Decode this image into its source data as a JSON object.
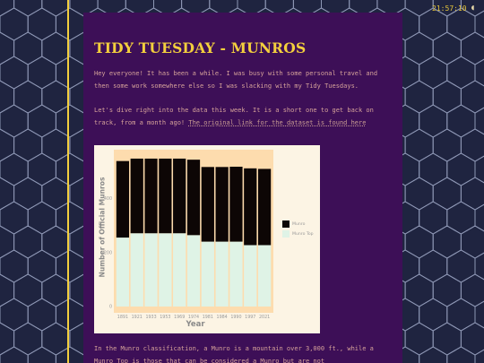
{
  "clock": {
    "time": "21:57:10"
  },
  "article": {
    "title": "TIDY TUESDAY - MUNROS",
    "intro": "Hey everyone! It has been a while. I was busy with some personal travel and then some work somewhere else so I was slacking with my Tidy Tuesdays.",
    "intro2_text": "Let's dive right into the data this week. It is a short one to get back on track, from a month ago!",
    "intro2_link": "The original link for the dataset is found here",
    "body": "In the Munro classification, a Munro is a mountain over 3,000 ft., while a Munro Top is those that can be considered a Munro but are not"
  },
  "colors": {
    "page_bg": "#1f2440",
    "hex_stroke": "#8e97b5",
    "article_bg": "#3d0f57",
    "accent": "#f3cf3d",
    "body_text": "#d6a39a",
    "plot_bg": "#fddcae",
    "munro_fill": "#0d0605",
    "munro_top_fill": "#dff3e6"
  },
  "chart_data": {
    "type": "bar",
    "stacked": true,
    "categories": [
      "1891",
      "1921",
      "1933",
      "1953",
      "1969",
      "1974",
      "1981",
      "1984",
      "1990",
      "1997",
      "2021"
    ],
    "series": [
      {
        "name": "Munro Top",
        "values": [
          255,
          271,
          271,
          271,
          271,
          264,
          240,
          240,
          240,
          227,
          227
        ]
      },
      {
        "name": "Munro",
        "values": [
          283,
          276,
          276,
          276,
          276,
          279,
          276,
          276,
          277,
          284,
          282
        ]
      }
    ],
    "xlabel": "Year",
    "ylabel": "Number of Official Munros",
    "yticks": [
      0,
      200,
      400
    ],
    "ylim": [
      0,
      580
    ],
    "legend": "right",
    "grid": false
  }
}
